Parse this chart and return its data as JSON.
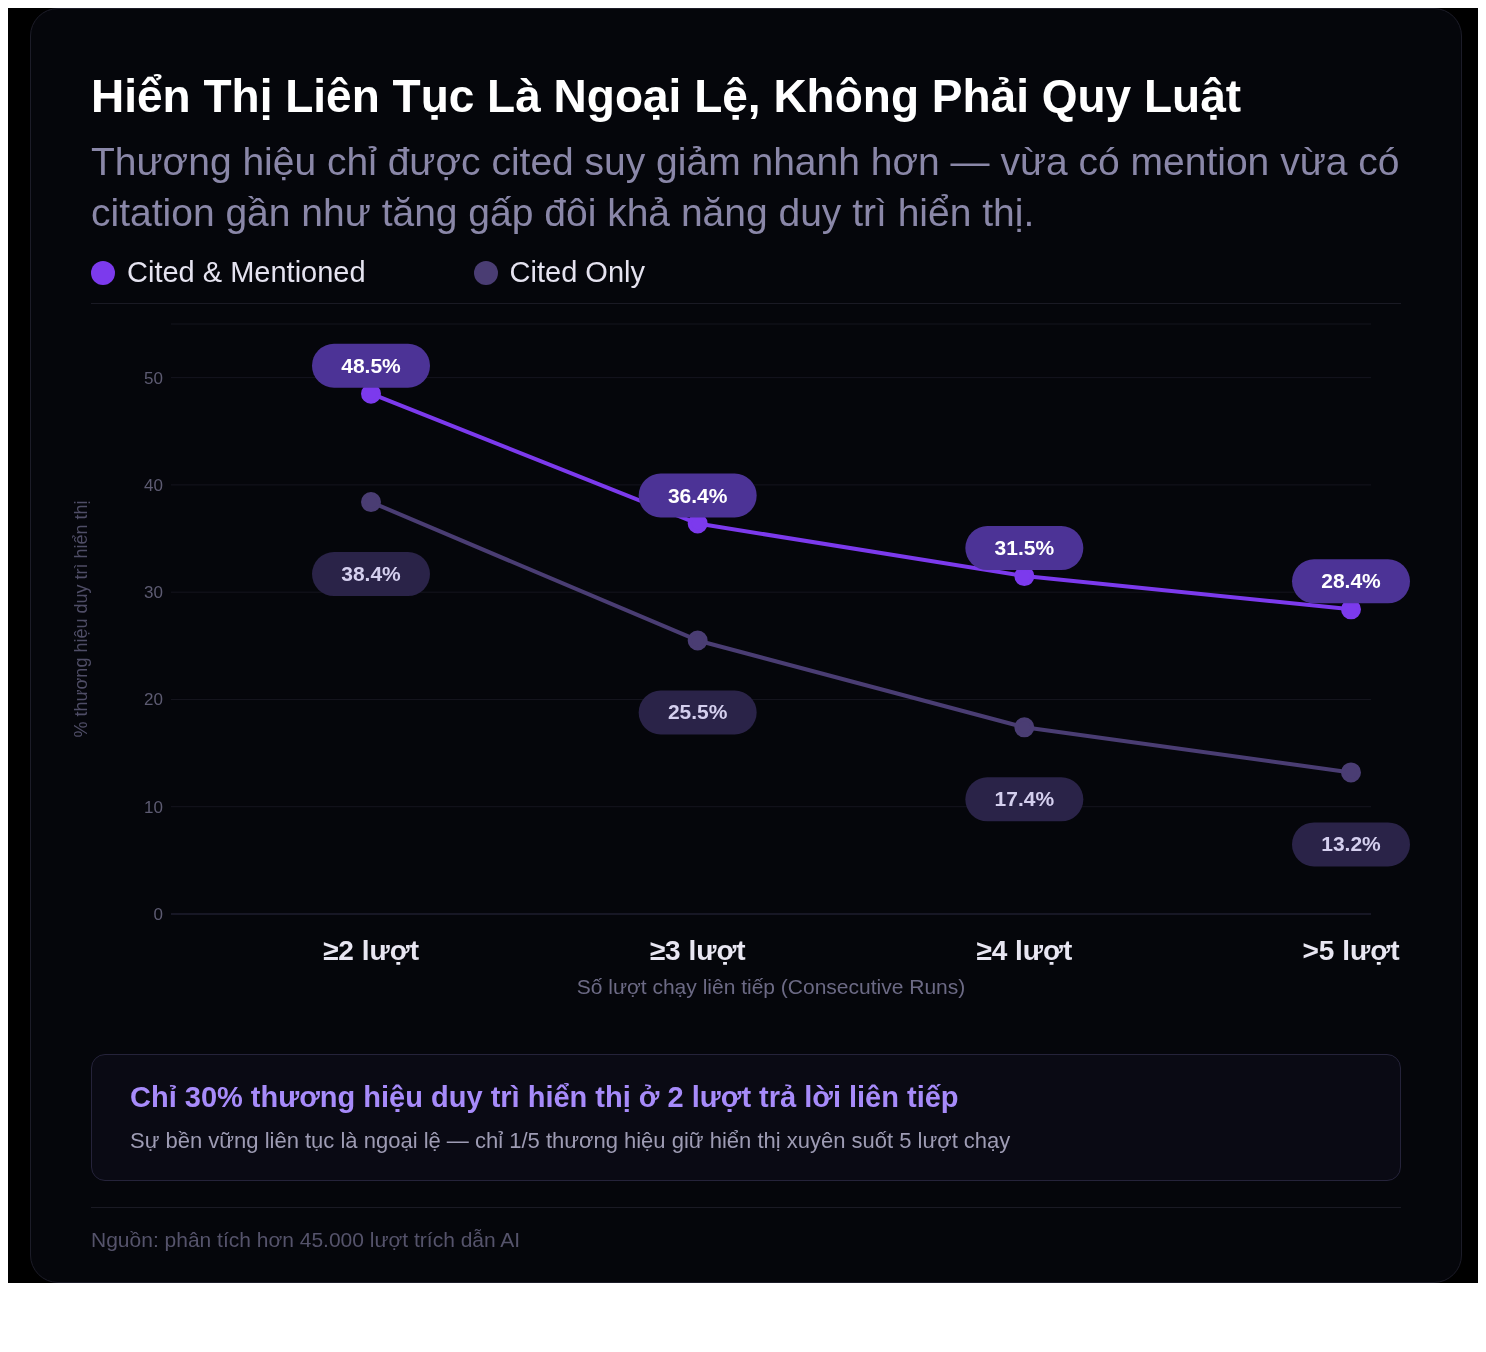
{
  "chart_data": {
    "type": "line",
    "title": "Hiển Thị Liên Tục Là Ngoại Lệ, Không Phải Quy Luật",
    "subtitle": "Thương hiệu chỉ được cited suy giảm nhanh hơn — vừa có mention vừa có citation gần như tăng gấp đôi khả năng duy trì hiển thị.",
    "xlabel": "Số lượt chạy liên tiếp (Consecutive Runs)",
    "ylabel": "% thương hiệu duy trì hiển thị",
    "categories": [
      "≥2 lượt",
      "≥3 lượt",
      "≥4 lượt",
      ">5 lượt"
    ],
    "series": [
      {
        "name": "Cited & Mentioned",
        "color": "#7c3aed",
        "values": [
          48.5,
          36.4,
          31.5,
          28.4
        ],
        "value_labels": [
          "48.5%",
          "36.4%",
          "31.5%",
          "28.4%"
        ]
      },
      {
        "name": "Cited Only",
        "color": "#4a3d73",
        "values": [
          38.4,
          25.5,
          17.4,
          13.2
        ],
        "value_labels": [
          "38.4%",
          "25.5%",
          "17.4%",
          "13.2%"
        ]
      }
    ],
    "ylim": [
      0,
      55
    ],
    "yticks": [
      0,
      10,
      20,
      30,
      40,
      50
    ],
    "grid": "y",
    "legend": "top left",
    "marker": "circle",
    "line_style": "solid",
    "annotations": [
      "Chỉ 30% thương hiệu duy trì hiển thị ở 2 lượt trả lời liên tiếp",
      "Sự bền vững liên tục là ngoại lệ — chỉ 1/5 thương hiệu giữ hiển thị xuyên suốt 5 lượt chạy",
      "Nguồn: phân tích hơn 45.000 lượt trích dẫn AI"
    ]
  }
}
